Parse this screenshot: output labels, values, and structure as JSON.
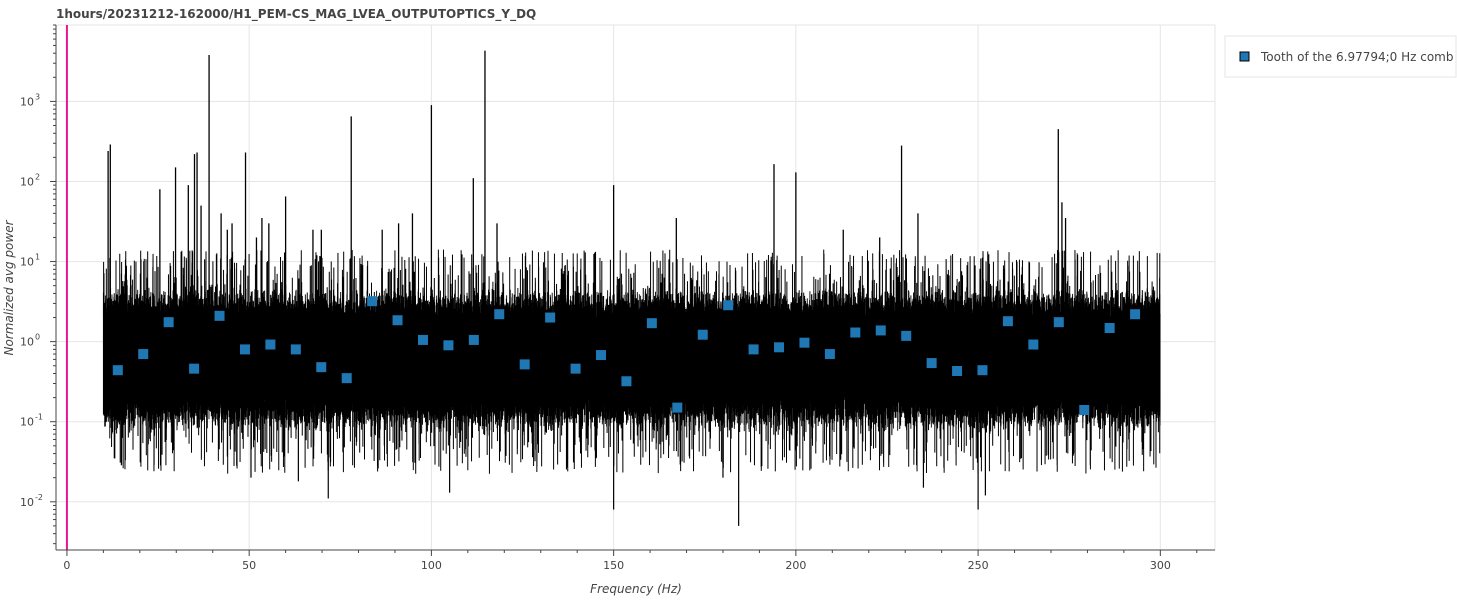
{
  "chart_data": {
    "type": "scatter",
    "title": "1hours/20231212-162000/H1_PEM-CS_MAG_LVEA_OUTPUTOPTICS_Y_DQ",
    "xlabel": "Frequency (Hz)",
    "ylabel": "Normalized avg power",
    "xlim": [
      -3,
      315
    ],
    "ylim": [
      0.0025,
      9000
    ],
    "yscale": "log",
    "grid": true,
    "legend_position": "top-right, outside plot",
    "x_ticks": [
      0,
      50,
      100,
      150,
      200,
      250,
      300
    ],
    "y_ticks": [
      {
        "base": "10",
        "exp": "-2",
        "value": 0.01
      },
      {
        "base": "10",
        "exp": "-1",
        "value": 0.1
      },
      {
        "base": "10",
        "exp": "0",
        "value": 1
      },
      {
        "base": "10",
        "exp": "1",
        "value": 10
      },
      {
        "base": "10",
        "exp": "2",
        "value": 100
      },
      {
        "base": "10",
        "exp": "3",
        "value": 1000
      }
    ],
    "vertical_marker": {
      "x": 0,
      "color": "#e6198c"
    },
    "spectrum": {
      "color": "#000000",
      "x_range": [
        10,
        300
      ],
      "band": [
        0.13,
        3.0
      ],
      "peaks": [
        [
          11.3,
          240
        ],
        [
          11.9,
          290
        ],
        [
          25.5,
          80
        ],
        [
          29.8,
          150
        ],
        [
          33.3,
          90
        ],
        [
          35.0,
          220
        ],
        [
          35.7,
          230
        ],
        [
          36.8,
          50
        ],
        [
          39.0,
          3800
        ],
        [
          42.3,
          40
        ],
        [
          44.0,
          25
        ],
        [
          45.3,
          30
        ],
        [
          49.0,
          230
        ],
        [
          52.0,
          20
        ],
        [
          53.5,
          35
        ],
        [
          55.4,
          30
        ],
        [
          60.0,
          65
        ],
        [
          67.5,
          25
        ],
        [
          69.8,
          25
        ],
        [
          78.0,
          650
        ],
        [
          86.5,
          25
        ],
        [
          91.0,
          30
        ],
        [
          94.8,
          40
        ],
        [
          100.0,
          900
        ],
        [
          111.5,
          110
        ],
        [
          114.7,
          4300
        ],
        [
          118.0,
          30
        ],
        [
          150.0,
          90
        ],
        [
          167.2,
          35
        ],
        [
          194.0,
          165
        ],
        [
          200.0,
          130
        ],
        [
          213.0,
          25
        ],
        [
          223.0,
          20
        ],
        [
          229.0,
          280
        ],
        [
          233.5,
          40
        ],
        [
          272.0,
          450
        ],
        [
          273.0,
          55
        ],
        [
          274.0,
          35
        ]
      ],
      "dips": [
        [
          13.0,
          0.035
        ],
        [
          50.5,
          0.02
        ],
        [
          63.5,
          0.018
        ],
        [
          71.7,
          0.011
        ],
        [
          105.0,
          0.013
        ],
        [
          150.0,
          0.008
        ],
        [
          180.0,
          0.02
        ],
        [
          184.3,
          0.005
        ],
        [
          235.0,
          0.015
        ],
        [
          250.0,
          0.008
        ],
        [
          252.0,
          0.012
        ]
      ]
    },
    "series": [
      {
        "name": "Tooth of the 6.97794;0 Hz comb",
        "color": "#1f77b4",
        "points": [
          [
            13.96,
            0.44
          ],
          [
            20.93,
            0.7
          ],
          [
            27.91,
            1.75
          ],
          [
            34.89,
            0.46
          ],
          [
            41.87,
            2.1
          ],
          [
            48.85,
            0.8
          ],
          [
            55.82,
            0.92
          ],
          [
            62.8,
            0.8
          ],
          [
            69.78,
            0.48
          ],
          [
            76.76,
            0.35
          ],
          [
            83.74,
            3.2
          ],
          [
            90.71,
            1.85
          ],
          [
            97.69,
            1.05
          ],
          [
            104.67,
            0.9
          ],
          [
            111.65,
            1.05
          ],
          [
            118.62,
            2.2
          ],
          [
            125.6,
            0.52
          ],
          [
            132.58,
            2.0
          ],
          [
            139.56,
            0.46
          ],
          [
            146.54,
            0.68
          ],
          [
            153.51,
            0.32
          ],
          [
            160.49,
            1.7
          ],
          [
            167.47,
            0.15
          ],
          [
            174.45,
            1.22
          ],
          [
            181.43,
            2.85
          ],
          [
            188.4,
            0.8
          ],
          [
            195.38,
            0.85
          ],
          [
            202.36,
            0.97
          ],
          [
            209.34,
            0.7
          ],
          [
            216.31,
            1.3
          ],
          [
            223.29,
            1.38
          ],
          [
            230.27,
            1.18
          ],
          [
            237.25,
            0.54
          ],
          [
            244.23,
            0.43
          ],
          [
            251.2,
            0.44
          ],
          [
            258.18,
            1.8
          ],
          [
            265.16,
            0.92
          ],
          [
            272.14,
            1.75
          ],
          [
            279.12,
            0.14
          ],
          [
            286.09,
            1.48
          ],
          [
            293.07,
            2.2
          ]
        ]
      }
    ]
  }
}
